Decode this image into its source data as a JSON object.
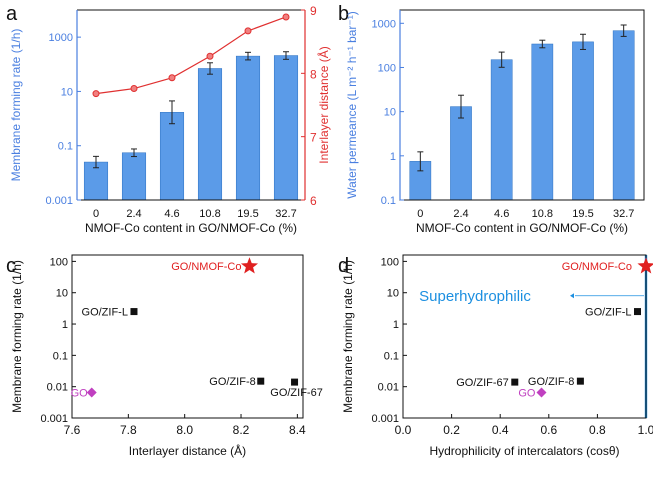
{
  "colors": {
    "bar": "#5b9be8",
    "bar_edge": "#2a6fc0",
    "left_axis": "#4a7fe0",
    "right_axis": "#e03030",
    "marker_black": "#111111",
    "marker_red": "#e02020",
    "marker_magenta": "#c040c0",
    "highlight": "#1c8fe0"
  },
  "chart_data": [
    {
      "panel": "a",
      "type": "bar",
      "categories": [
        "0",
        "2.4",
        "4.6",
        "10.8",
        "19.5",
        "32.7"
      ],
      "values": [
        0.025,
        0.055,
        1.7,
        70,
        200,
        210
      ],
      "errors_log_pct": [
        0.03,
        0.02,
        0.06,
        0.03,
        0.02,
        0.02
      ],
      "xlabel": "NMOF-Co content in GO/NMOF-Co (%)",
      "ylabel": "Membrane forming rate (1/h)",
      "yscale": "log",
      "ylim": [
        0.001,
        10000
      ],
      "yticks": [
        "0.001",
        "0.1",
        "10",
        "1000"
      ],
      "ytick_values": [
        0.001,
        0.1,
        10,
        1000
      ],
      "secondary": {
        "type": "line",
        "values": [
          7.68,
          7.76,
          7.93,
          8.27,
          8.67,
          8.89
        ],
        "ylabel": "Interlayer distance (Å)",
        "ylim": [
          6,
          9
        ],
        "yticks": [
          "6",
          "7",
          "8",
          "9"
        ],
        "ytick_values": [
          6,
          7,
          8,
          9
        ]
      }
    },
    {
      "panel": "b",
      "type": "bar",
      "categories": [
        "0",
        "2.4",
        "4.6",
        "10.8",
        "19.5",
        "32.7"
      ],
      "values": [
        0.75,
        13,
        150,
        340,
        380,
        680
      ],
      "errors_log_pct": [
        0.05,
        0.06,
        0.04,
        0.02,
        0.04,
        0.03
      ],
      "xlabel": "NMOF-Co content in GO/NMOF-Co (%)",
      "ylabel": "Water permeance (L m⁻² h⁻¹ bar⁻¹)",
      "yscale": "log",
      "ylim": [
        0.1,
        2000
      ],
      "yticks": [
        "0.1",
        "1",
        "10",
        "100",
        "1000"
      ],
      "ytick_values": [
        0.1,
        1,
        10,
        100,
        1000
      ]
    },
    {
      "panel": "c",
      "type": "scatter",
      "xlabel": "Interlayer distance (Å)",
      "ylabel": "Membrane forming rate (1/h)",
      "yscale": "log",
      "xlim": [
        7.6,
        8.42
      ],
      "ylim": [
        0.001,
        160
      ],
      "xticks": [
        "7.6",
        "7.8",
        "8.0",
        "8.2",
        "8.4"
      ],
      "xtick_values": [
        7.6,
        7.8,
        8.0,
        8.2,
        8.4
      ],
      "yticks": [
        "0.001",
        "0.01",
        "0.1",
        "1",
        "10",
        "100"
      ],
      "ytick_values": [
        0.001,
        0.01,
        0.1,
        1,
        10,
        100
      ],
      "points": [
        {
          "label": "GO/NMOF-Co",
          "x": 8.23,
          "y": 70,
          "marker": "star",
          "color": "red"
        },
        {
          "label": "GO/ZIF-L",
          "x": 7.82,
          "y": 2.5,
          "marker": "square",
          "color": "black"
        },
        {
          "label": "GO/ZIF-8",
          "x": 8.27,
          "y": 0.015,
          "marker": "square",
          "color": "black"
        },
        {
          "label": "GO/ZIF-67",
          "x": 8.39,
          "y": 0.014,
          "marker": "square",
          "color": "black"
        },
        {
          "label": "GO",
          "x": 7.67,
          "y": 0.0065,
          "marker": "diamond",
          "color": "magenta"
        }
      ]
    },
    {
      "panel": "d",
      "type": "scatter",
      "xlabel": "Hydrophilicity of intercalators (cosθ)",
      "ylabel": "Membrane forming rate (1/h)",
      "yscale": "log",
      "xlim": [
        0,
        1.0
      ],
      "ylim": [
        0.001,
        160
      ],
      "xticks": [
        "0.0",
        "0.2",
        "0.4",
        "0.6",
        "0.8",
        "1.0"
      ],
      "xtick_values": [
        0,
        0.2,
        0.4,
        0.6,
        0.8,
        1.0
      ],
      "yticks": [
        "0.001",
        "0.01",
        "0.1",
        "1",
        "10",
        "100"
      ],
      "ytick_values": [
        0.001,
        0.01,
        0.1,
        1,
        10,
        100
      ],
      "annotation": "Superhydrophilic",
      "points": [
        {
          "label": "GO/NMOF-Co",
          "x": 1.0,
          "y": 70,
          "marker": "star",
          "color": "red"
        },
        {
          "label": "GO/ZIF-L",
          "x": 0.965,
          "y": 2.5,
          "marker": "square",
          "color": "black"
        },
        {
          "label": "GO/ZIF-8",
          "x": 0.73,
          "y": 0.015,
          "marker": "square",
          "color": "black"
        },
        {
          "label": "GO/ZIF-67",
          "x": 0.46,
          "y": 0.014,
          "marker": "square",
          "color": "black"
        },
        {
          "label": "GO",
          "x": 0.57,
          "y": 0.0065,
          "marker": "diamond",
          "color": "magenta"
        }
      ]
    }
  ]
}
